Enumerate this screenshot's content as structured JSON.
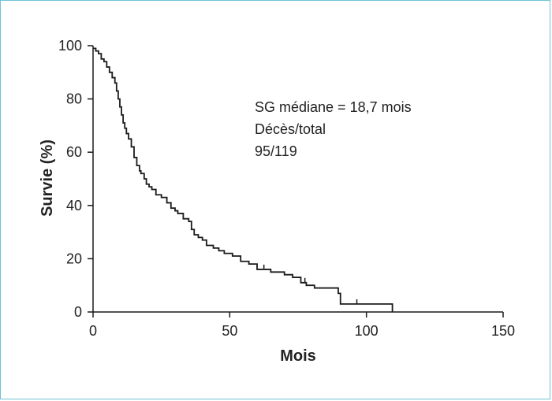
{
  "chart_data": {
    "type": "line",
    "subtype": "kaplan-meier-step",
    "xlabel": "Mois",
    "ylabel": "Survie (%)",
    "xlim": [
      0,
      150
    ],
    "ylim": [
      0,
      100
    ],
    "xticks": [
      0,
      50,
      100,
      150
    ],
    "yticks": [
      0,
      20,
      40,
      60,
      80,
      100
    ],
    "grid": false,
    "annotations": [
      "SG médiane = 18,7 mois",
      "Décès/total",
      "95/119"
    ],
    "series": [
      {
        "color": "#1a1a1a",
        "x": [
          0,
          1,
          2,
          3,
          4,
          5,
          6,
          7,
          8,
          8.6,
          9.2,
          9.8,
          10.4,
          11,
          11.6,
          12.2,
          13,
          14,
          15,
          16,
          17,
          17.5,
          18.7,
          19.5,
          20.5,
          21.5,
          23,
          25,
          27,
          28.5,
          30,
          31,
          33,
          35,
          36,
          37,
          38.5,
          40,
          41.5,
          44,
          46,
          48,
          51,
          54,
          57,
          60,
          65,
          70,
          73,
          76,
          78,
          81,
          86,
          89,
          89.7,
          90.5,
          95,
          100,
          105,
          109.5
        ],
        "y": [
          99,
          98,
          97,
          95,
          94,
          92,
          90,
          88,
          86,
          83,
          80,
          77,
          74,
          71,
          69,
          67,
          65,
          62,
          58,
          55,
          53,
          52,
          50,
          48,
          47,
          46,
          44,
          43,
          41,
          39,
          38,
          37,
          35,
          34,
          31,
          29,
          28,
          27,
          25,
          24,
          23,
          22,
          21,
          19,
          18,
          16,
          15,
          14,
          13,
          11,
          10,
          9,
          9,
          9,
          7,
          3,
          3,
          3,
          3,
          0
        ],
        "censored_x": [
          62.5,
          77.5,
          96.5
        ]
      }
    ]
  }
}
